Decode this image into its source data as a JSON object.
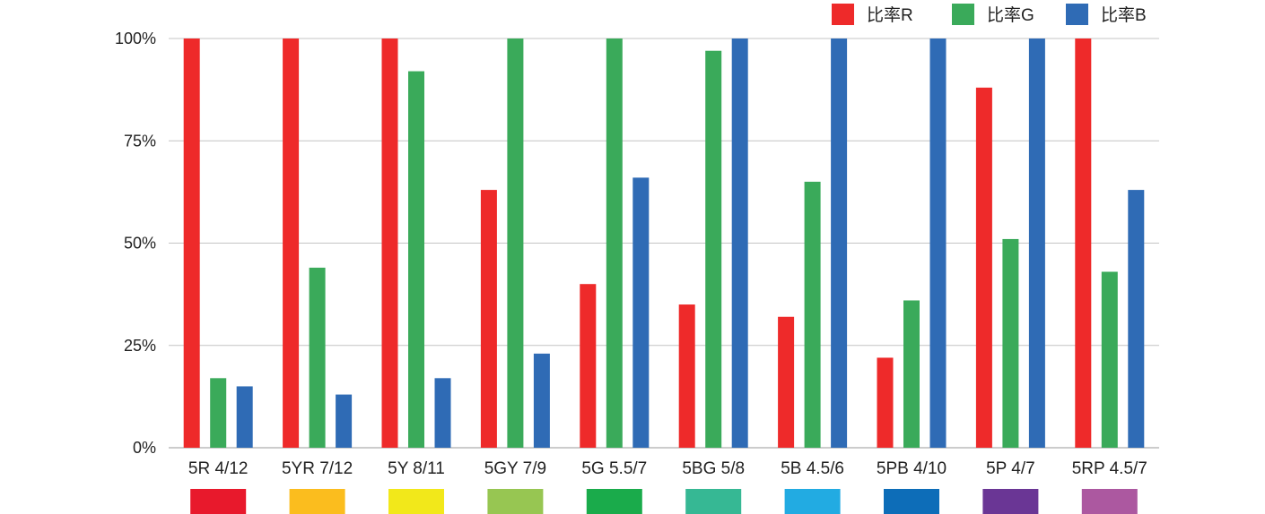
{
  "chart_data": {
    "type": "bar",
    "categories": [
      "5R 4/12",
      "5YR 7/12",
      "5Y 8/11",
      "5GY 7/9",
      "5G 5.5/7",
      "5BG 5/8",
      "5B 4.5/6",
      "5PB 4/10",
      "5P 4/7",
      "5RP 4.5/7"
    ],
    "series": [
      {
        "name": "比率R",
        "color": "#ee2a2a",
        "values": [
          100,
          100,
          100,
          63,
          40,
          35,
          32,
          22,
          88,
          100
        ]
      },
      {
        "name": "比率G",
        "color": "#3aaa5a",
        "values": [
          17,
          44,
          92,
          100,
          100,
          97,
          65,
          36,
          51,
          43
        ]
      },
      {
        "name": "比率B",
        "color": "#2f6bb5",
        "values": [
          15,
          13,
          17,
          23,
          66,
          100,
          100,
          100,
          100,
          63
        ]
      }
    ],
    "ylim": [
      0,
      100
    ],
    "yticks": [
      "0%",
      "25%",
      "50%",
      "75%",
      "100%"
    ],
    "grid": true,
    "legend_position": "top-right",
    "swatch_colors": [
      "#e8192c",
      "#fbbd1e",
      "#f2e81a",
      "#97c652",
      "#1aab4b",
      "#36b894",
      "#22abe2",
      "#0d6db8",
      "#6a3695",
      "#ac58a0"
    ]
  }
}
